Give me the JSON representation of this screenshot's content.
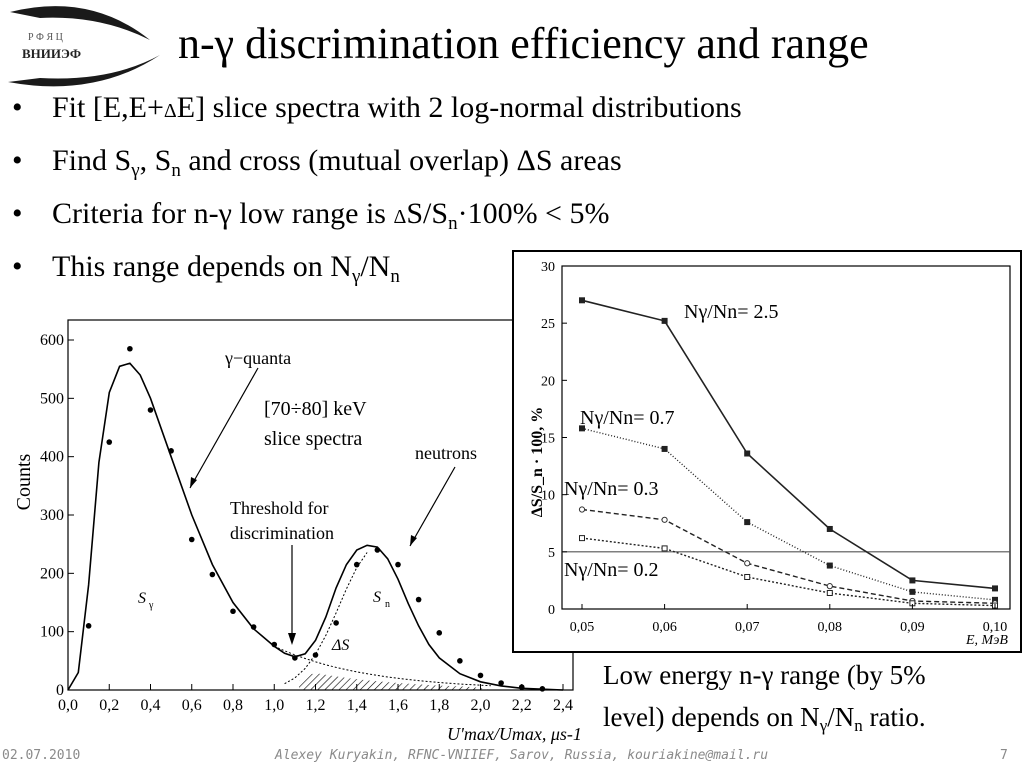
{
  "logo": {
    "line1": "Р Ф Я Ц",
    "line2": "ВНИИЭФ"
  },
  "slide": {
    "title": "n-γ discrimination efficiency and range"
  },
  "bullets": [
    {
      "text_a": "Fit [E,E+",
      "delta": "Δ",
      "text_b": "E] slice spectra with 2 log-normal distributions"
    },
    {
      "text_a": "Find S",
      "sub1": "γ",
      "text_b": ", S",
      "sub2": "n",
      "text_c": " and cross (mutual overlap) ΔS areas"
    },
    {
      "text_a": "Criteria for n-γ low range is ",
      "delta": "Δ",
      "text_b": "S/S",
      "sub1": "n",
      "text_c": "·100% < 5%"
    },
    {
      "text_a": "This range depends on N",
      "sub1": "γ",
      "text_b": "/N",
      "sub2": "n"
    }
  ],
  "caption": {
    "line1": "Low energy n-γ range (by 5%",
    "line2_a": "level) depends on N",
    "sub1": "γ",
    "line2_b": "/N",
    "sub2": "n",
    "line2_c": " ratio."
  },
  "footer": {
    "date": "02.07.2010",
    "author": "Alexey Kuryakin, RFNC-VNIIEF, Sarov, Russia, kouriakine@mail.ru",
    "page": "7"
  },
  "chart_data": [
    {
      "type": "scatter",
      "ylabel": "Counts",
      "xlabel": "U'max/Umax, μs-1",
      "xlim": [
        0,
        2.4
      ],
      "ylim": [
        0,
        600
      ],
      "x_ticks": [
        "0,0",
        "0,2",
        "0,4",
        "0,6",
        "0,8",
        "1,0",
        "1,2",
        "1,4",
        "1,6",
        "1,8",
        "2,0",
        "2,2",
        "2,4"
      ],
      "y_ticks": [
        "0",
        "100",
        "200",
        "300",
        "400",
        "500",
        "600"
      ],
      "points_x": [
        0.1,
        0.2,
        0.3,
        0.4,
        0.5,
        0.6,
        0.7,
        0.8,
        0.9,
        1.0,
        1.1,
        1.2,
        1.3,
        1.4,
        1.5,
        1.6,
        1.7,
        1.8,
        1.9,
        2.0,
        2.1,
        2.2,
        2.3
      ],
      "points_y": [
        110,
        425,
        585,
        480,
        410,
        258,
        198,
        135,
        108,
        78,
        55,
        60,
        115,
        215,
        240,
        215,
        155,
        98,
        50,
        25,
        12,
        5,
        2
      ],
      "fit_x": [
        0,
        0.05,
        0.1,
        0.15,
        0.2,
        0.25,
        0.3,
        0.35,
        0.4,
        0.5,
        0.6,
        0.7,
        0.8,
        0.9,
        1.0,
        1.05,
        1.1,
        1.15,
        1.2,
        1.25,
        1.3,
        1.35,
        1.4,
        1.45,
        1.5,
        1.55,
        1.6,
        1.65,
        1.7,
        1.75,
        1.8,
        1.9,
        2.0,
        2.1,
        2.2,
        2.4
      ],
      "fit_y": [
        0,
        30,
        180,
        390,
        510,
        555,
        560,
        540,
        500,
        400,
        300,
        215,
        150,
        105,
        75,
        63,
        57,
        62,
        85,
        125,
        175,
        215,
        240,
        248,
        245,
        225,
        190,
        148,
        110,
        78,
        55,
        28,
        14,
        7,
        3,
        0
      ],
      "annotations": [
        "γ−quanta",
        "[70÷80] keV",
        "slice spectra",
        "neutrons",
        "Threshold for",
        "discrimination",
        "S",
        "γ",
        "S",
        "n",
        "ΔS"
      ]
    },
    {
      "type": "line",
      "ylabel": "ΔS/S_n · 100, %",
      "xlabel": "E, МэВ",
      "x": [
        0.05,
        0.06,
        0.07,
        0.08,
        0.09,
        0.1
      ],
      "x_ticks": [
        "0,05",
        "0,06",
        "0,07",
        "0,08",
        "0,09",
        "0,10"
      ],
      "y_ticks": [
        "0",
        "5",
        "10",
        "15",
        "20",
        "25",
        "30"
      ],
      "ylim": [
        0,
        30
      ],
      "threshold": 5,
      "series": [
        {
          "name": "Nγ/Nn= 2.5",
          "values": [
            27,
            25.2,
            13.6,
            7.0,
            2.5,
            1.8
          ]
        },
        {
          "name": "Nγ/Nn= 0.7",
          "values": [
            15.8,
            14.0,
            7.6,
            3.8,
            1.5,
            0.8
          ]
        },
        {
          "name": "Nγ/Nn= 0.3",
          "values": [
            8.7,
            7.8,
            4.0,
            2.0,
            0.7,
            0.5
          ]
        },
        {
          "name": "Nγ/Nn= 0.2",
          "values": [
            6.2,
            5.3,
            2.8,
            1.4,
            0.5,
            0.3
          ]
        }
      ]
    }
  ]
}
